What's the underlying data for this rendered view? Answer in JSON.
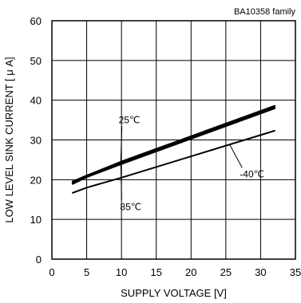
{
  "chart_data": {
    "type": "line",
    "subtitle": "BA10358  family",
    "xlabel": "SUPPLY VOLTAGE [V]",
    "ylabel": "LOW LEVEL SINK CURRENT [ μ A]",
    "xlim": [
      0,
      35
    ],
    "ylim": [
      0,
      60
    ],
    "xticks": [
      "0",
      "5",
      "10",
      "15",
      "20",
      "25",
      "30",
      "35"
    ],
    "yticks": [
      "0",
      "10",
      "20",
      "30",
      "40",
      "50",
      "60"
    ],
    "grid": true,
    "series": [
      {
        "name": "25℃",
        "x": [
          3,
          5,
          10,
          32
        ],
        "y": [
          19.5,
          21,
          24.5,
          38.5
        ]
      },
      {
        "name": "85℃",
        "x": [
          3,
          5,
          10,
          32
        ],
        "y": [
          19,
          20.7,
          24,
          38
        ]
      },
      {
        "name": "-40℃",
        "x": [
          3,
          5,
          10,
          32
        ],
        "y": [
          16.7,
          18,
          20.5,
          32.3
        ]
      }
    ],
    "annotations": [
      {
        "text": "25℃",
        "x": 9.6,
        "y": 34.2,
        "target_x": 9.9,
        "target_y": 24.4
      },
      {
        "text": "85℃",
        "x": 9.8,
        "y": 12.3,
        "target_x": 9.9,
        "target_y": 23.9
      },
      {
        "text": "-40℃",
        "x": 27,
        "y": 20.6,
        "target_x": 25.5,
        "target_y": 29.0
      }
    ]
  }
}
